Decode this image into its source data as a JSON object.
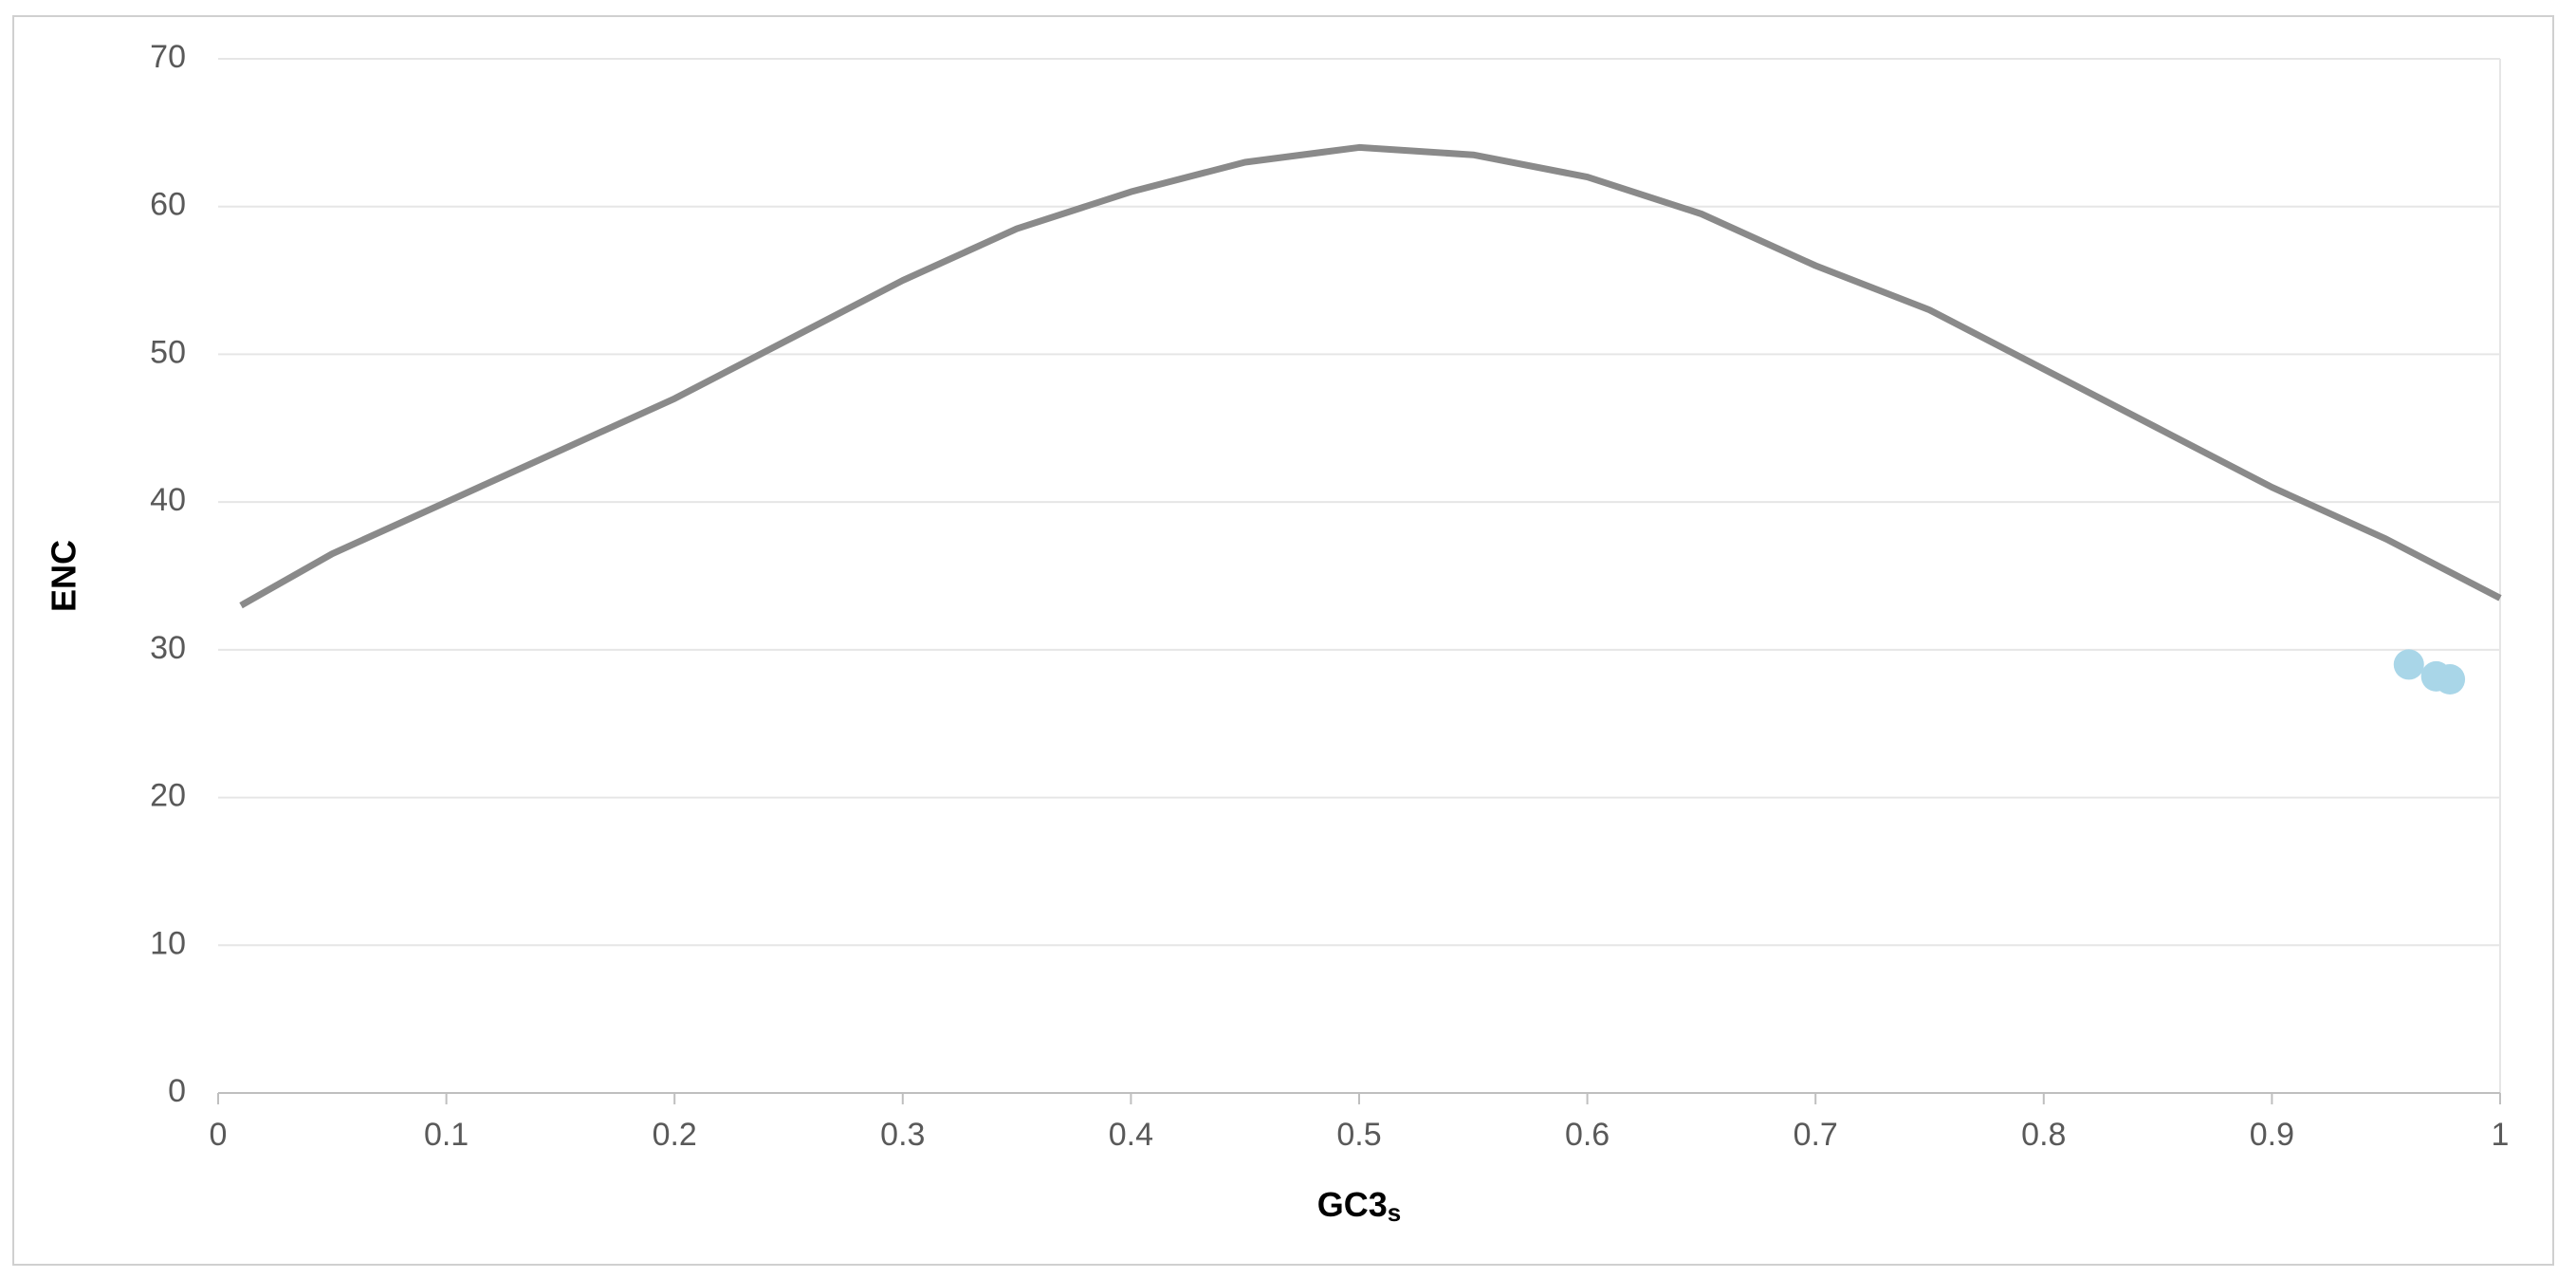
{
  "chart_data": {
    "type": "line_scatter",
    "xlabel": "GC3",
    "xlabel_subscript": "s",
    "ylabel": "ENC",
    "xlim": [
      0,
      1
    ],
    "ylim": [
      0,
      70
    ],
    "xticks": [
      0,
      0.1,
      0.2,
      0.3,
      0.4,
      0.5,
      0.6,
      0.7,
      0.8,
      0.9,
      1
    ],
    "yticks": [
      0,
      10,
      20,
      30,
      40,
      50,
      60,
      70
    ],
    "grid": true,
    "series": [
      {
        "type": "line",
        "color": "#8a8a8a",
        "x": [
          0.01,
          0.05,
          0.1,
          0.15,
          0.2,
          0.25,
          0.3,
          0.35,
          0.4,
          0.45,
          0.5,
          0.55,
          0.6,
          0.65,
          0.7,
          0.75,
          0.8,
          0.85,
          0.9,
          0.95,
          1.0
        ],
        "values": [
          33,
          36.5,
          40,
          43.5,
          47,
          51,
          55,
          58.5,
          61,
          63,
          64,
          63.5,
          62,
          59.5,
          56,
          53,
          49,
          45,
          41,
          37.5,
          33.5
        ]
      },
      {
        "type": "scatter",
        "color": "#a9d6e8",
        "x": [
          0.96,
          0.972,
          0.978
        ],
        "values": [
          29,
          28.2,
          28
        ]
      }
    ]
  }
}
